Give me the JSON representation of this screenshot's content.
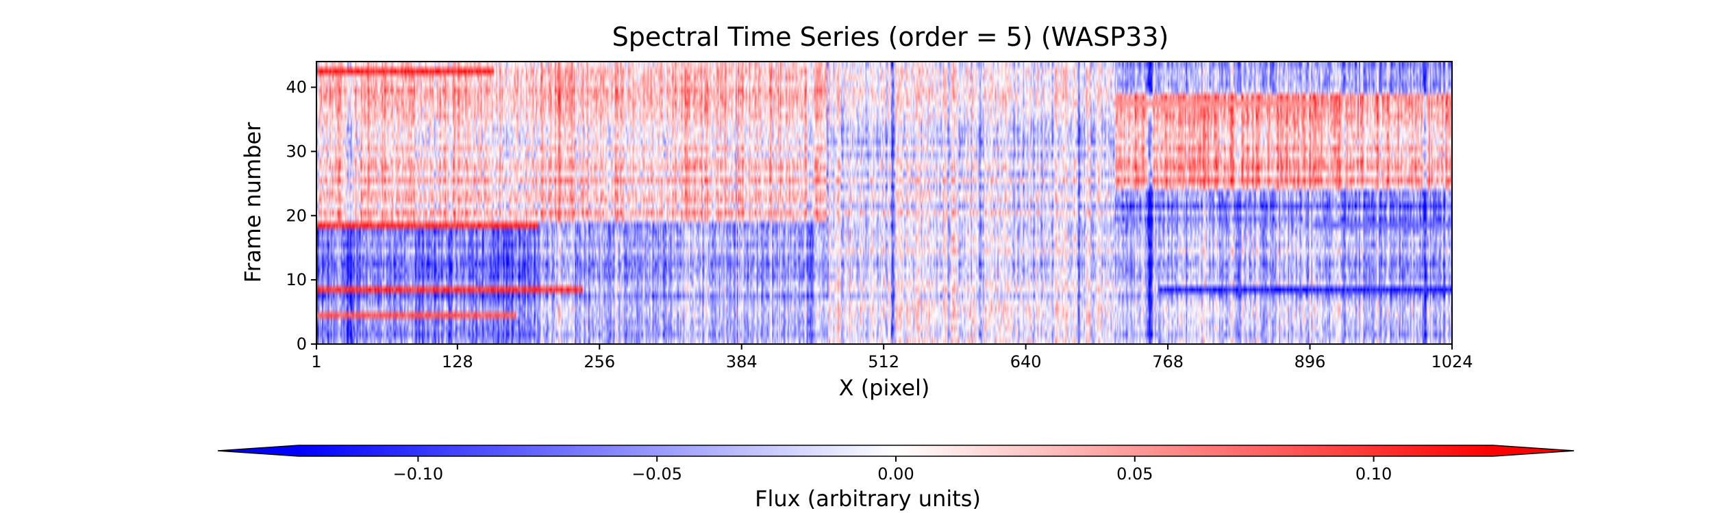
{
  "chart_data": {
    "type": "heatmap",
    "title": "Spectral Time Series (order = 5) (WASP33)",
    "xlabel": "X (pixel)",
    "ylabel": "Frame number",
    "xlim": [
      1,
      1024
    ],
    "ylim": [
      0,
      44
    ],
    "x_ticks": [
      1,
      128,
      256,
      384,
      512,
      640,
      768,
      896,
      1024
    ],
    "x_tick_labels": [
      "1",
      "128",
      "256",
      "384",
      "512",
      "640",
      "768",
      "896",
      "1024"
    ],
    "y_ticks": [
      0,
      10,
      20,
      30,
      40
    ],
    "y_tick_labels": [
      "0",
      "10",
      "20",
      "30",
      "40"
    ],
    "n_frames": 44,
    "n_pixels": 1024,
    "colormap": "bwr",
    "vmin": -0.125,
    "vmax": 0.125,
    "colorbar": {
      "label": "Flux (arbitrary units)",
      "ticks": [
        -0.1,
        -0.05,
        0.0,
        0.05,
        0.1
      ],
      "tick_labels": [
        "−0.10",
        "−0.05",
        "0.00",
        "0.05",
        "0.10"
      ],
      "extend": "both",
      "orientation": "horizontal"
    },
    "region_trends": [
      {
        "x_range": [
          1,
          200
        ],
        "y_range": [
          0,
          18
        ],
        "mean_flux": -0.06
      },
      {
        "x_range": [
          1,
          200
        ],
        "y_range": [
          19,
          44
        ],
        "mean_flux": 0.02
      },
      {
        "x_range": [
          200,
          460
        ],
        "y_range": [
          0,
          18
        ],
        "mean_flux": -0.04
      },
      {
        "x_range": [
          200,
          460
        ],
        "y_range": [
          19,
          44
        ],
        "mean_flux": 0.02
      },
      {
        "x_range": [
          460,
          720
        ],
        "y_range": [
          0,
          44
        ],
        "mean_flux": -0.01
      },
      {
        "x_range": [
          720,
          1024
        ],
        "y_range": [
          0,
          18
        ],
        "mean_flux": -0.03
      },
      {
        "x_range": [
          720,
          1024
        ],
        "y_range": [
          19,
          23
        ],
        "mean_flux": -0.06
      },
      {
        "x_range": [
          720,
          1024
        ],
        "y_range": [
          24,
          38
        ],
        "mean_flux": 0.04
      },
      {
        "x_range": [
          720,
          1024
        ],
        "y_range": [
          39,
          44
        ],
        "mean_flux": -0.05
      }
    ],
    "frame_features": [
      {
        "frame": 42,
        "x_range": [
          1,
          160
        ],
        "flux": 0.12
      },
      {
        "frame": 18,
        "x_range": [
          1,
          200
        ],
        "flux": 0.11
      },
      {
        "frame": 8,
        "x_range": [
          1,
          240
        ],
        "flux": 0.11
      },
      {
        "frame": 4,
        "x_range": [
          1,
          180
        ],
        "flux": 0.09
      },
      {
        "frame": 8,
        "x_range": [
          760,
          1024
        ],
        "flux": -0.12
      },
      {
        "frame": 18,
        "x_range": [
          900,
          1024
        ],
        "flux": -0.08
      },
      {
        "frame": 37,
        "x_range": [
          720,
          900
        ],
        "flux": 0.06
      }
    ],
    "column_features": [
      {
        "x": 30,
        "flux": -0.05
      },
      {
        "x": 108,
        "flux": -0.04
      },
      {
        "x": 220,
        "flux": 0.05
      },
      {
        "x": 315,
        "flux": -0.06
      },
      {
        "x": 352,
        "flux": 0.05
      },
      {
        "x": 445,
        "flux": -0.06
      },
      {
        "x": 520,
        "flux": -0.07
      },
      {
        "x": 600,
        "flux": -0.05
      },
      {
        "x": 688,
        "flux": -0.06
      },
      {
        "x": 752,
        "flux": -0.1
      },
      {
        "x": 826,
        "flux": 0.07
      },
      {
        "x": 900,
        "flux": 0.06
      },
      {
        "x": 1000,
        "flux": -0.07
      }
    ]
  }
}
